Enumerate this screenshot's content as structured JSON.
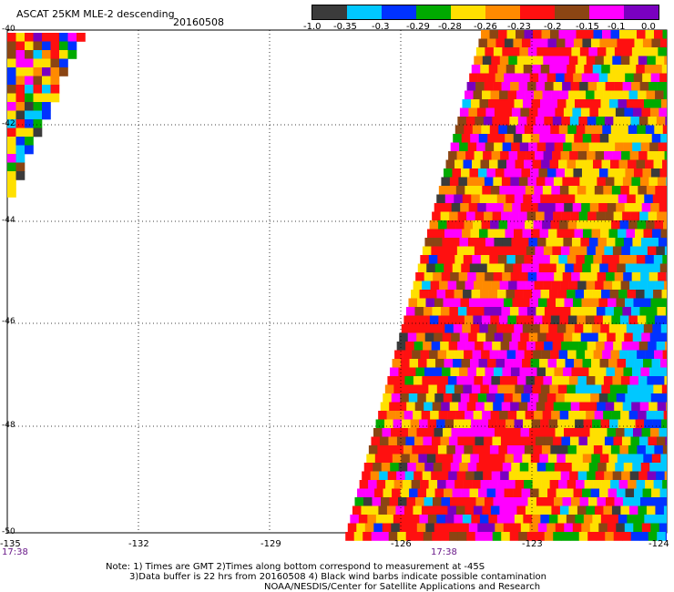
{
  "header": {
    "title": "ASCAT 25KM MLE-2 descending",
    "date": "20160508"
  },
  "colorbar": {
    "colors": [
      "#3b3b3b",
      "#00c8ff",
      "#0032ff",
      "#00aa00",
      "#ffe000",
      "#ff8a00",
      "#ff1010",
      "#8b4513",
      "#ff00ff",
      "#7a00c0"
    ],
    "labels": [
      "-1.0",
      "-0.35",
      "-0.3",
      "-0.29",
      "-0.28",
      "-0.26",
      "-0.23",
      "-0.2",
      "-0.15",
      "-0.1",
      "0.0"
    ]
  },
  "axes": {
    "x_ticks": [
      "-135",
      "-132",
      "-129",
      "-126",
      "-123",
      "-124"
    ],
    "y_ticks": [
      "-40",
      "-42",
      "-44",
      "-46",
      "-48",
      "-50"
    ],
    "time_labels": [
      "17:38",
      "17:38"
    ]
  },
  "notes": {
    "line1": "Note: 1) Times are GMT 2)Times along bottom correspond to measurement at -45S",
    "line2": "3)Data buffer is 22 hrs from 20160508 4) Black wind barbs indicate possible contamination",
    "line3": "NOAA/NESDIS/Center for Satellite Applications and Research"
  }
}
